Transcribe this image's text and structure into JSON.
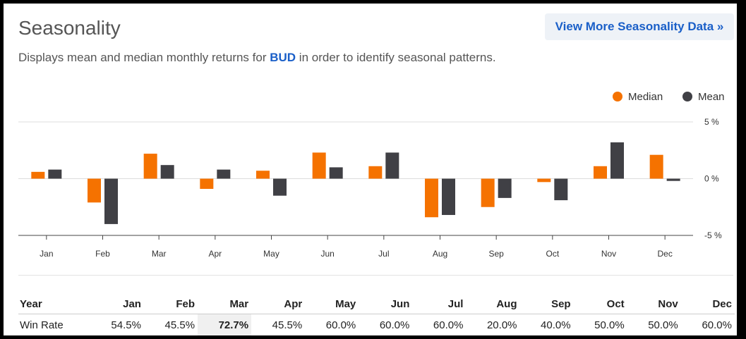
{
  "header": {
    "title": "Seasonality",
    "more_link": "View More Seasonality Data »",
    "description_before": "Displays mean and median monthly returns for ",
    "ticker": "BUD",
    "description_after": " in order to identify seasonal patterns."
  },
  "colors": {
    "median": "#f57200",
    "mean": "#404045"
  },
  "chart_data": {
    "type": "bar",
    "categories": [
      "Jan",
      "Feb",
      "Mar",
      "Apr",
      "May",
      "Jun",
      "Jul",
      "Aug",
      "Sep",
      "Oct",
      "Nov",
      "Dec"
    ],
    "series": [
      {
        "name": "Median",
        "values": [
          0.6,
          -2.1,
          2.2,
          -0.9,
          0.7,
          2.3,
          1.1,
          -3.4,
          -2.5,
          -0.3,
          1.1,
          2.1
        ]
      },
      {
        "name": "Mean",
        "values": [
          0.8,
          -4.0,
          1.2,
          0.8,
          -1.5,
          1.0,
          2.3,
          -3.2,
          -1.7,
          -1.9,
          3.2,
          -0.2
        ]
      }
    ],
    "yticks": [
      "5 %",
      "0 %",
      "-5 %"
    ],
    "ylim": [
      -5,
      5
    ],
    "grid": true,
    "legend_position": "top-right"
  },
  "win_rate": {
    "header": [
      "Year",
      "Jan",
      "Feb",
      "Mar",
      "Apr",
      "May",
      "Jun",
      "Jul",
      "Aug",
      "Sep",
      "Oct",
      "Nov",
      "Dec"
    ],
    "row_label": "Win Rate",
    "values": [
      "54.5%",
      "45.5%",
      "72.7%",
      "45.5%",
      "60.0%",
      "60.0%",
      "60.0%",
      "20.0%",
      "40.0%",
      "50.0%",
      "50.0%",
      "60.0%"
    ],
    "highlight": "Mar"
  }
}
